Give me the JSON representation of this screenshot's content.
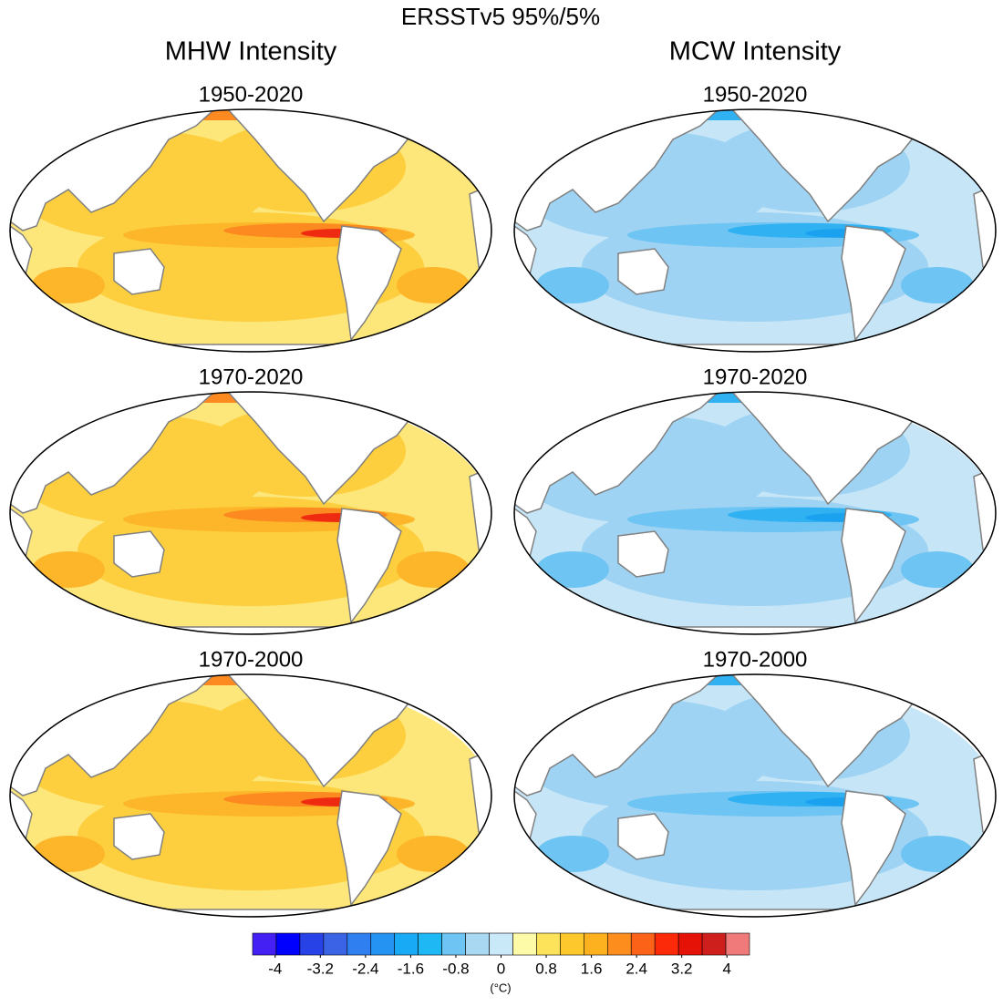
{
  "title": "ERSSTv5 95%/5%",
  "columns": [
    {
      "title": "MHW Intensity",
      "panels": [
        "1950-2020",
        "1970-2020",
        "1970-2000"
      ],
      "colors": [
        "#fde77a",
        "#fdcf3e",
        "#fdb52a",
        "#fd8a20",
        "#ee2a10"
      ]
    },
    {
      "title": "MCW Intensity",
      "panels": [
        "1950-2020",
        "1970-2020",
        "1970-2000"
      ],
      "colors": [
        "#c6e6f8",
        "#9fd3f3",
        "#6ec4f2",
        "#2fb1f2",
        "#1aa2ef"
      ]
    }
  ],
  "colorbar": {
    "colors": [
      "#4520f5",
      "#0000ff",
      "#2743e8",
      "#3a63e6",
      "#2f7ff0",
      "#2493f2",
      "#18aaf5",
      "#1eb8f5",
      "#6ec4f2",
      "#a9d8f3",
      "#c9e8f8",
      "#fdfaa8",
      "#fde35a",
      "#fdc82c",
      "#fdb11e",
      "#fd8d1c",
      "#fd6318",
      "#fd2a0a",
      "#e51208",
      "#cf1f1c",
      "#f07a7a"
    ],
    "lim": [
      -4.4,
      4.4
    ],
    "ticks": [
      -4,
      -3.2,
      -2.4,
      -1.6,
      -0.8,
      0,
      0.8,
      1.6,
      2.4,
      3.2,
      4
    ],
    "units": "(°C)"
  }
}
